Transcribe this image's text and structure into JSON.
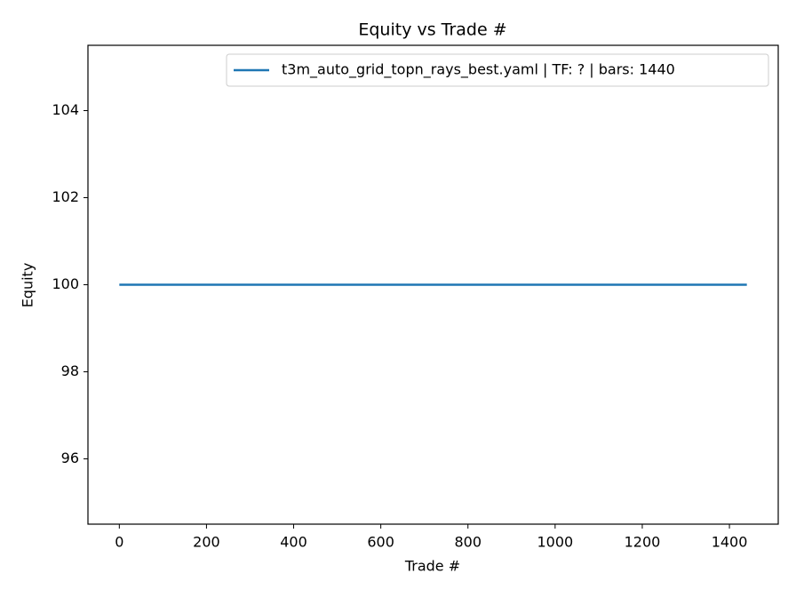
{
  "chart_data": {
    "type": "line",
    "title": "Equity vs Trade #",
    "x_label": "Trade #",
    "y_label": "Equity",
    "x": [
      0,
      1440
    ],
    "series": [
      {
        "name": "t3m_auto_grid_topn_rays_best.yaml | TF: ? | bars: 1440",
        "color": "#1f77b4",
        "values": [
          100,
          100
        ]
      }
    ],
    "xlim": [
      -72,
      1512
    ],
    "xticks": [
      0,
      200,
      400,
      600,
      800,
      1000,
      1200,
      1400
    ],
    "ylim": [
      94.5,
      105.5
    ],
    "yticks": [
      96,
      98,
      100,
      102,
      104
    ],
    "grid": false,
    "legend": "upper right"
  }
}
